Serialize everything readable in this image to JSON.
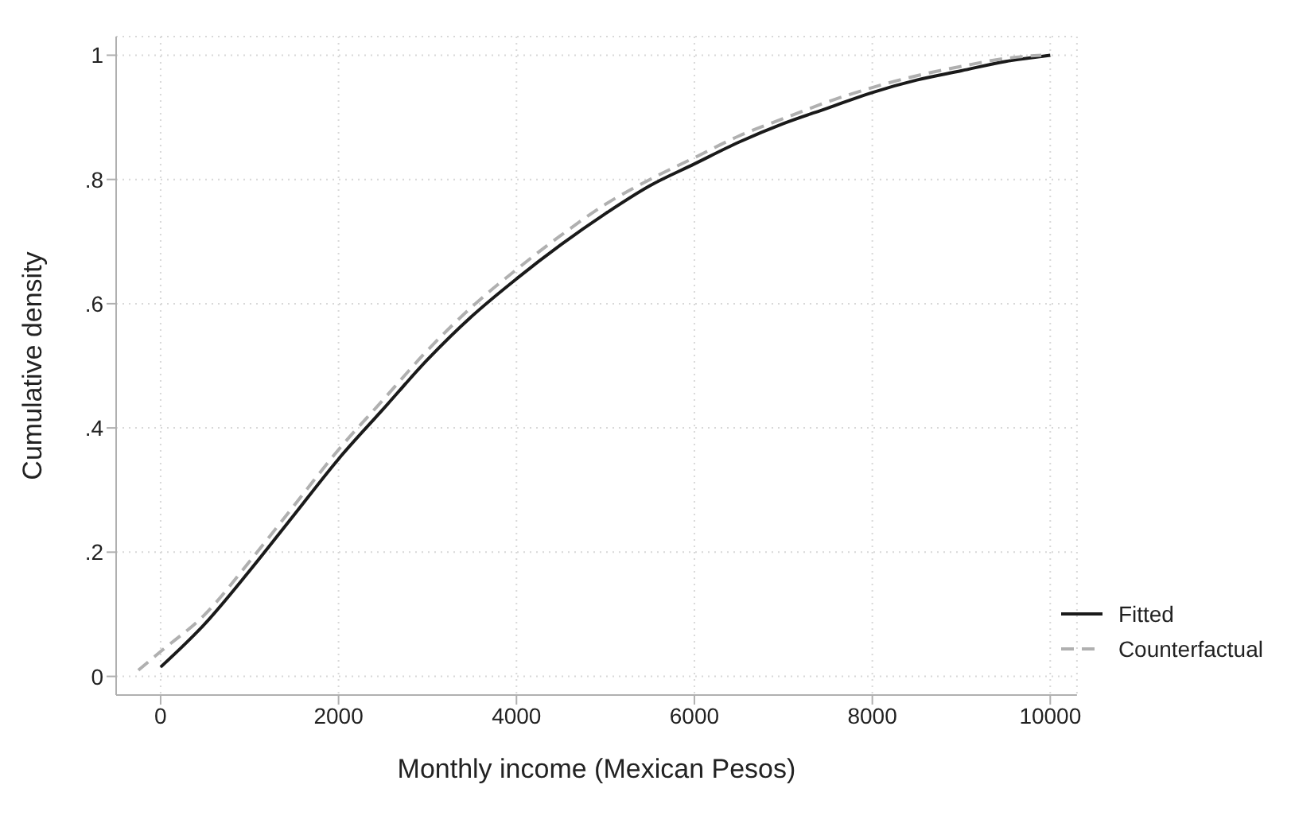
{
  "chart_data": {
    "type": "line",
    "xlabel": "Monthly income (Mexican Pesos)",
    "ylabel": "Cumulative density",
    "xlim": [
      -500,
      10300
    ],
    "ylim": [
      -0.03,
      1.03
    ],
    "xticks": [
      0,
      2000,
      4000,
      6000,
      8000,
      10000
    ],
    "yticks": [
      {
        "value": 0,
        "label": "0"
      },
      {
        "value": 0.2,
        "label": ".2"
      },
      {
        "value": 0.4,
        "label": ".4"
      },
      {
        "value": 0.6,
        "label": ".6"
      },
      {
        "value": 0.8,
        "label": ".8"
      },
      {
        "value": 1,
        "label": "1"
      }
    ],
    "grid": true,
    "legend": "bottom right",
    "marker": "none",
    "series": [
      {
        "name": "Fitted",
        "color": "#1a1a1a",
        "line_style": "solid",
        "x": [
          0,
          500,
          1000,
          1500,
          2000,
          2500,
          3000,
          3500,
          4000,
          4500,
          5000,
          5500,
          6000,
          6500,
          7000,
          7500,
          8000,
          8500,
          9000,
          9500,
          10000
        ],
        "values": [
          0.015,
          0.085,
          0.17,
          0.26,
          0.35,
          0.43,
          0.51,
          0.58,
          0.64,
          0.695,
          0.745,
          0.79,
          0.825,
          0.86,
          0.89,
          0.915,
          0.94,
          0.96,
          0.975,
          0.99,
          1.0
        ]
      },
      {
        "name": "Counterfactual",
        "color": "#b0b0b0",
        "line_style": "dashed",
        "x": [
          -250,
          0,
          500,
          1000,
          1500,
          2000,
          2500,
          3000,
          3500,
          4000,
          4500,
          5000,
          5500,
          6000,
          6500,
          7000,
          7500,
          8000,
          8500,
          9000,
          9500,
          9900
        ],
        "values": [
          0.01,
          0.04,
          0.1,
          0.185,
          0.275,
          0.365,
          0.445,
          0.525,
          0.595,
          0.655,
          0.71,
          0.76,
          0.8,
          0.835,
          0.87,
          0.898,
          0.925,
          0.948,
          0.967,
          0.982,
          0.995,
          1.0
        ]
      }
    ]
  }
}
